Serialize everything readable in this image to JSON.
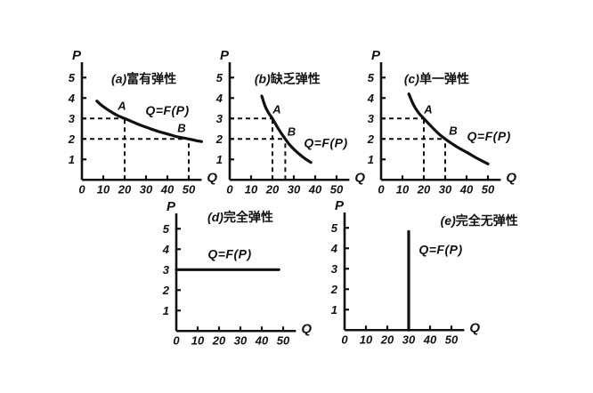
{
  "figure": {
    "background": "#ffffff",
    "ink": "#111111",
    "description_labels": {
      "p_axis": "P",
      "q_axis": "Q",
      "function_label": "Q=F(P)"
    }
  },
  "chart_data": [
    {
      "id": "a",
      "type": "line",
      "title_prefix": "(a)",
      "title": "富有弹性",
      "xlabel": "Q",
      "ylabel": "P",
      "xlim": [
        0,
        56
      ],
      "ylim": [
        0,
        5.75
      ],
      "xticks": [
        0,
        10,
        20,
        30,
        40,
        50
      ],
      "yticks": [
        1,
        2,
        3,
        4,
        5
      ],
      "grid": false,
      "title_pos": [
        29,
        4.72
      ],
      "curve": {
        "label": "Q=F(P)",
        "label_pos": [
          40,
          3.18
        ],
        "points": [
          [
            7,
            3.85
          ],
          [
            10,
            3.58
          ],
          [
            14,
            3.3
          ],
          [
            17,
            3.13
          ],
          [
            20,
            3
          ],
          [
            24,
            2.82
          ],
          [
            28,
            2.65
          ],
          [
            32,
            2.5
          ],
          [
            36,
            2.36
          ],
          [
            40,
            2.24
          ],
          [
            44,
            2.12
          ],
          [
            47,
            2.06
          ],
          [
            50,
            2
          ],
          [
            53,
            1.93
          ],
          [
            56,
            1.87
          ]
        ]
      },
      "markers": [
        {
          "label": "A",
          "q": 20,
          "p": 3,
          "label_offset": [
            -3,
            -10
          ],
          "guides": true
        },
        {
          "label": "B",
          "q": 50,
          "p": 2,
          "label_offset": [
            -8,
            -8
          ],
          "guides": true
        }
      ]
    },
    {
      "id": "b",
      "type": "line",
      "title_prefix": "(b)",
      "title": "缺乏弹性",
      "xlabel": "Q",
      "ylabel": "P",
      "xlim": [
        0,
        56
      ],
      "ylim": [
        0,
        5.75
      ],
      "xticks": [
        0,
        10,
        20,
        30,
        40,
        50
      ],
      "yticks": [
        1,
        2,
        3,
        4,
        5
      ],
      "grid": false,
      "title_pos": [
        27,
        4.72
      ],
      "curve": {
        "label": "Q=F(P)",
        "label_pos": [
          45,
          1.6
        ],
        "points": [
          [
            15,
            4.1
          ],
          [
            16.5,
            3.62
          ],
          [
            18,
            3.3
          ],
          [
            19,
            3.14
          ],
          [
            20,
            3
          ],
          [
            21.5,
            2.72
          ],
          [
            23,
            2.46
          ],
          [
            24.5,
            2.22
          ],
          [
            26,
            2
          ],
          [
            28,
            1.72
          ],
          [
            30,
            1.5
          ],
          [
            33,
            1.22
          ],
          [
            35.5,
            1.02
          ],
          [
            38,
            0.85
          ]
        ]
      },
      "markers": [
        {
          "label": "A",
          "q": 20,
          "p": 3,
          "label_offset": [
            5,
            -6
          ],
          "guides": true
        },
        {
          "label": "B",
          "q": 26,
          "p": 2,
          "label_offset": [
            7,
            -4
          ],
          "guides": true
        }
      ]
    },
    {
      "id": "c",
      "type": "line",
      "title_prefix": "(c)",
      "title": "单一弹性",
      "xlabel": "Q",
      "ylabel": "P",
      "xlim": [
        0,
        56
      ],
      "ylim": [
        0,
        5.75
      ],
      "xticks": [
        0,
        10,
        20,
        30,
        40,
        50
      ],
      "yticks": [
        1,
        2,
        3,
        4,
        5
      ],
      "grid": false,
      "title_pos": [
        26,
        4.72
      ],
      "curve": {
        "label": "Q=F(P)",
        "label_pos": [
          50.5,
          1.92
        ],
        "points": [
          [
            13,
            4.2
          ],
          [
            14.5,
            3.82
          ],
          [
            16,
            3.52
          ],
          [
            18,
            3.22
          ],
          [
            20,
            3
          ],
          [
            22.5,
            2.72
          ],
          [
            25,
            2.45
          ],
          [
            27.5,
            2.2
          ],
          [
            30,
            2
          ],
          [
            33,
            1.78
          ],
          [
            36,
            1.58
          ],
          [
            40,
            1.35
          ],
          [
            45,
            1.05
          ],
          [
            50,
            0.78
          ]
        ]
      },
      "markers": [
        {
          "label": "A",
          "q": 20,
          "p": 3,
          "label_offset": [
            5,
            -6
          ],
          "guides": true
        },
        {
          "label": "B",
          "q": 30,
          "p": 2,
          "label_offset": [
            9,
            -5
          ],
          "guides": true
        }
      ]
    },
    {
      "id": "d",
      "type": "line",
      "title_prefix": "(d)",
      "title": "完全弹性",
      "xlabel": "Q",
      "ylabel": "P",
      "xlim": [
        0,
        56
      ],
      "ylim": [
        0,
        5.75
      ],
      "xticks": [
        0,
        10,
        20,
        30,
        40,
        50
      ],
      "yticks": [
        1,
        2,
        3,
        4,
        5
      ],
      "grid": false,
      "title_pos": [
        30,
        5.35
      ],
      "curve": {
        "label": "Q=F(P)",
        "label_pos": [
          25,
          3.55
        ],
        "points": [
          [
            0,
            3
          ],
          [
            48,
            3
          ]
        ]
      },
      "markers": []
    },
    {
      "id": "e",
      "type": "line",
      "title_prefix": "(e)",
      "title": "完全无弹性",
      "xlabel": "Q",
      "ylabel": "P",
      "xlim": [
        0,
        56
      ],
      "ylim": [
        0,
        5.75
      ],
      "xticks": [
        0,
        10,
        20,
        30,
        40,
        50
      ],
      "yticks": [
        1,
        2,
        3,
        4,
        5
      ],
      "grid": false,
      "title_pos": [
        63,
        5.15
      ],
      "curve": {
        "label": "Q=F(P)",
        "label_pos": [
          45,
          3.72
        ],
        "points": [
          [
            30,
            0
          ],
          [
            30,
            4.82
          ]
        ]
      },
      "markers": []
    }
  ]
}
